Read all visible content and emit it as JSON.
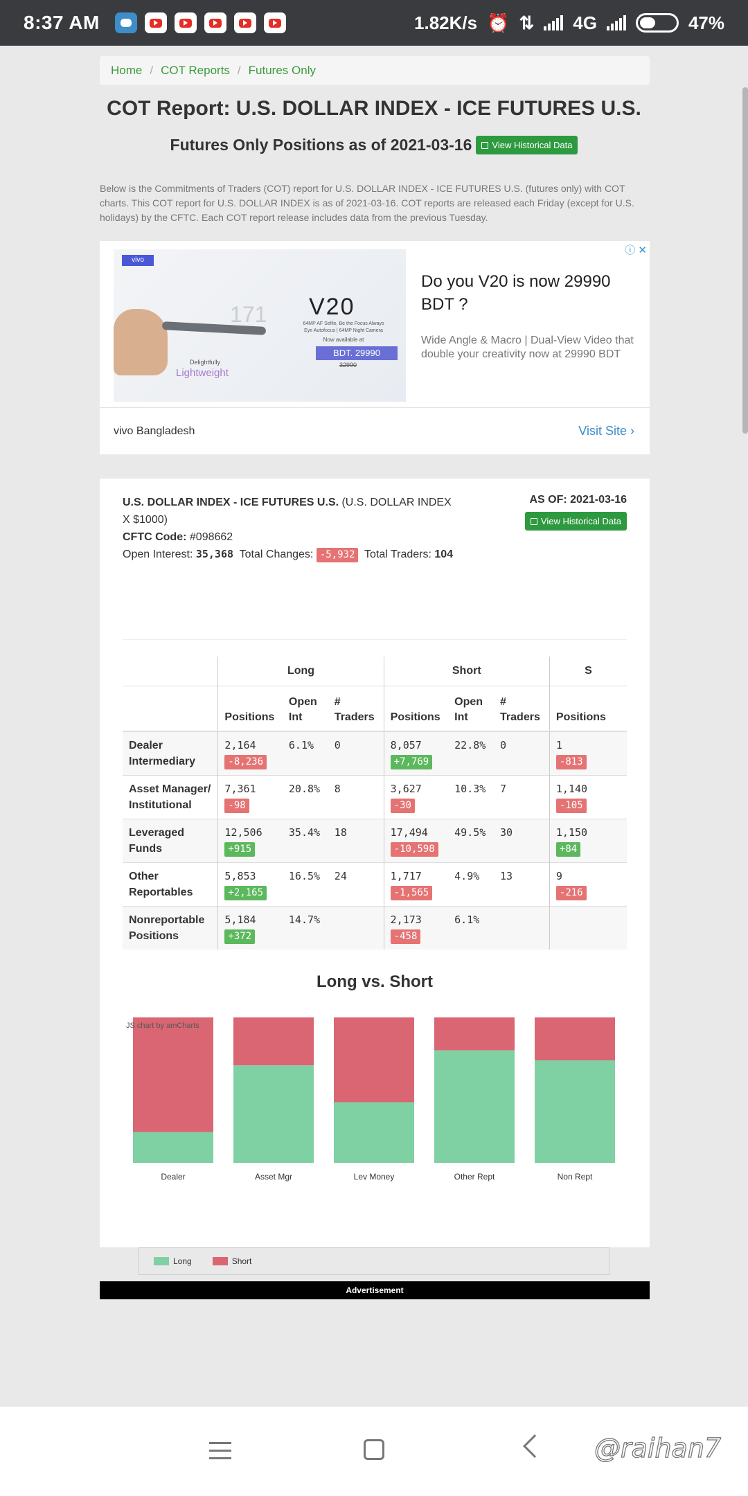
{
  "status_bar": {
    "time": "8:37 AM",
    "net_speed": "1.82K/s",
    "network": "4G",
    "battery": "47%"
  },
  "breadcrumb": [
    "Home",
    "COT Reports",
    "Futures Only"
  ],
  "title": "COT Report: U.S. DOLLAR INDEX - ICE FUTURES U.S.",
  "subtitle": "Futures Only Positions as of 2021-03-16",
  "view_historical": "View Historical Data",
  "intro": "Below is the Commitments of Traders (COT) report for U.S. DOLLAR INDEX - ICE FUTURES U.S. (futures only) with COT charts. This COT report for U.S. DOLLAR INDEX is as of 2021-03-16. COT reports are released each Friday (except for U.S. holidays) by the CFTC. Each COT report release includes data from the previous Tuesday.",
  "ad": {
    "close": "ⓘ ✕",
    "badge": "vivo",
    "img_171": "171",
    "img_model": "V20",
    "img_tagline": "64MP AF Selfie, Be the Focus Always",
    "img_tagline2": "Eye Autofocus | 64MP Night Camera",
    "img_available": "Now available at",
    "img_price": "BDT. 29990",
    "img_old_price": "32990",
    "img_delight": "Delightfully",
    "img_light": "Lightweight",
    "headline": "Do you V20 is now 29990 BDT ?",
    "description": "Wide Angle & Macro | Dual-View Video that double your creativity now at 29990 BDT",
    "advertiser": "vivo Bangladesh",
    "visit": "Visit Site"
  },
  "report": {
    "name": "U.S. DOLLAR INDEX - ICE FUTURES U.S.",
    "name_suffix": "(U.S. DOLLAR INDEX X $1000)",
    "cftc_label": "CFTC Code:",
    "cftc_code": "#098662",
    "oi_label": "Open Interest:",
    "open_interest": "35,368",
    "tc_label": "Total Changes:",
    "total_changes": "-5,932",
    "traders_label": "Total Traders:",
    "total_traders": "104",
    "as_of": "AS OF: 2021-03-16"
  },
  "table": {
    "groups": [
      "Long",
      "Short",
      "S"
    ],
    "cols": [
      "Positions",
      "Open Int",
      "# Traders",
      "Positions",
      "Open Int",
      "# Traders",
      "Positions"
    ],
    "rows": [
      {
        "label": "Dealer Intermediary",
        "lp": "2,164",
        "lc": "-8,236",
        "lo": "6.1%",
        "lt": "0",
        "sp": "8,057",
        "sc": "+7,769",
        "so": "22.8%",
        "st": "0",
        "xp": "1",
        "xc": "-813"
      },
      {
        "label": "Asset Manager/ Institutional",
        "lp": "7,361",
        "lc": "-98",
        "lo": "20.8%",
        "lt": "8",
        "sp": "3,627",
        "sc": "-30",
        "so": "10.3%",
        "st": "7",
        "xp": "1,140",
        "xc": "-105"
      },
      {
        "label": "Leveraged Funds",
        "lp": "12,506",
        "lc": "+915",
        "lo": "35.4%",
        "lt": "18",
        "sp": "17,494",
        "sc": "-10,598",
        "so": "49.5%",
        "st": "30",
        "xp": "1,150",
        "xc": "+84"
      },
      {
        "label": "Other Reportables",
        "lp": "5,853",
        "lc": "+2,165",
        "lo": "16.5%",
        "lt": "24",
        "sp": "1,717",
        "sc": "-1,565",
        "so": "4.9%",
        "st": "13",
        "xp": "9",
        "xc": "-216"
      },
      {
        "label": "Nonreportable Positions",
        "lp": "5,184",
        "lc": "+372",
        "lo": "14.7%",
        "lt": "",
        "sp": "2,173",
        "sc": "-458",
        "so": "6.1%",
        "st": "",
        "xp": "",
        "xc": ""
      }
    ]
  },
  "chart_title": "Long vs. Short",
  "chart_credit": "JS chart by amCharts",
  "chart_data": {
    "type": "bar",
    "stacked": true,
    "percent": true,
    "categories": [
      "Dealer",
      "Asset Mgr",
      "Lev Money",
      "Other Rept",
      "Non Rept"
    ],
    "series": [
      {
        "name": "Long",
        "color": "#7fd1a3",
        "values": [
          2164,
          7361,
          12506,
          5853,
          5184
        ]
      },
      {
        "name": "Short",
        "color": "#da6673",
        "values": [
          8057,
          3627,
          17494,
          1717,
          2173
        ]
      }
    ],
    "legend": "bottom"
  },
  "advertisement": "Advertisement",
  "watermark": "@raihan7"
}
